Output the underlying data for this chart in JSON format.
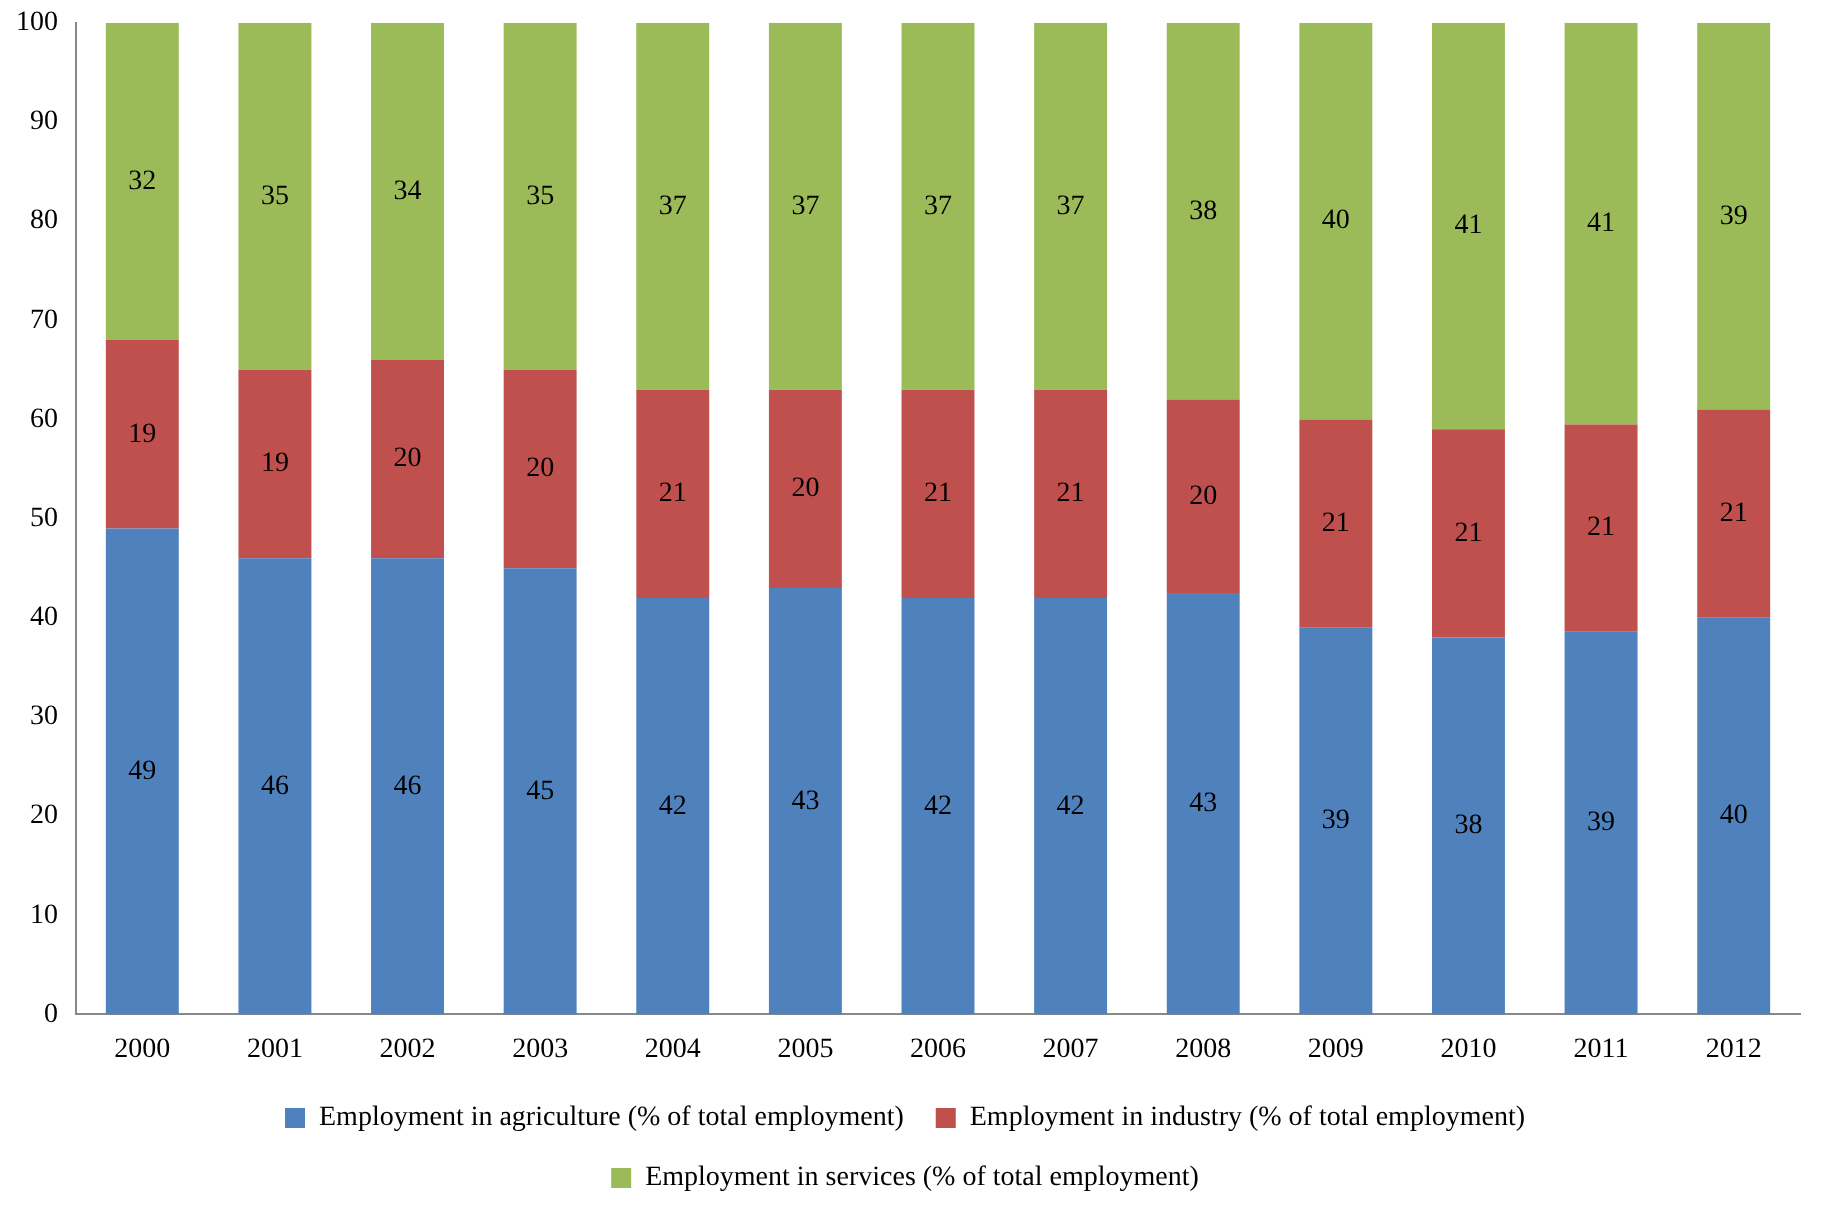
{
  "chart_data": {
    "type": "bar",
    "stacked": true,
    "categories": [
      "2000",
      "2001",
      "2002",
      "2003",
      "2004",
      "2005",
      "2006",
      "2007",
      "2008",
      "2009",
      "2010",
      "2011",
      "2012"
    ],
    "series": [
      {
        "name": "Employment in agriculture (% of total employment)",
        "color": "#4f81bd",
        "values": [
          49,
          46,
          46,
          45,
          42,
          43,
          42,
          42,
          42.5,
          39,
          38,
          38.6,
          40
        ],
        "value_labels": [
          "49",
          "46",
          "46",
          "45",
          "42",
          "43",
          "42",
          "42",
          "43",
          "39",
          "38",
          "39",
          "40"
        ]
      },
      {
        "name": "Employment in industry (% of total employment)",
        "color": "#c0504d",
        "values": [
          19,
          19,
          20,
          20,
          21,
          20,
          21,
          21,
          19.5,
          21,
          21,
          20.9,
          21
        ],
        "value_labels": [
          "19",
          "19",
          "20",
          "20",
          "21",
          "20",
          "21",
          "21",
          "20",
          "21",
          "21",
          "21",
          "21"
        ]
      },
      {
        "name": "Employment in services (% of total employment)",
        "color": "#9bbb59",
        "values": [
          32,
          35,
          34,
          35,
          37,
          37,
          37,
          37,
          38,
          40,
          41,
          40.5,
          39
        ],
        "value_labels": [
          "32",
          "35",
          "34",
          "35",
          "37",
          "37",
          "37",
          "37",
          "38",
          "40",
          "41",
          "41",
          "39"
        ]
      }
    ],
    "ylim": [
      0,
      100
    ],
    "yticks": [
      0,
      10,
      20,
      30,
      40,
      50,
      60,
      70,
      80,
      90,
      100
    ],
    "grid": false,
    "legend": "bottom"
  }
}
